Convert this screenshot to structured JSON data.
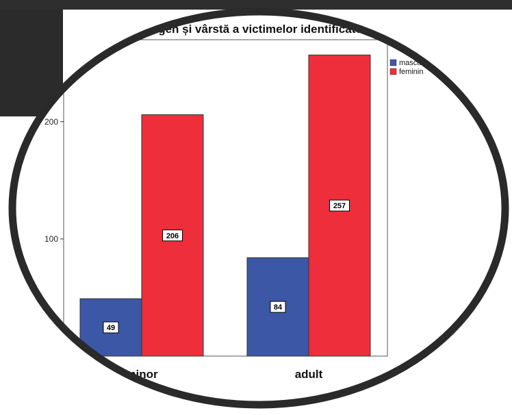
{
  "chart_data": {
    "type": "bar",
    "title": "gen și vârstă a victimelor identificate",
    "categories": [
      "minor",
      "adult"
    ],
    "series": [
      {
        "name": "masculin",
        "values": [
          49,
          84
        ],
        "color": "#3b57a6"
      },
      {
        "name": "feminin",
        "values": [
          206,
          257
        ],
        "color": "#ee2e3b"
      }
    ],
    "ylim": [
      0,
      270
    ],
    "yticks": [
      100,
      200
    ],
    "grid": false,
    "legend_position": "right",
    "data_labels": true
  }
}
